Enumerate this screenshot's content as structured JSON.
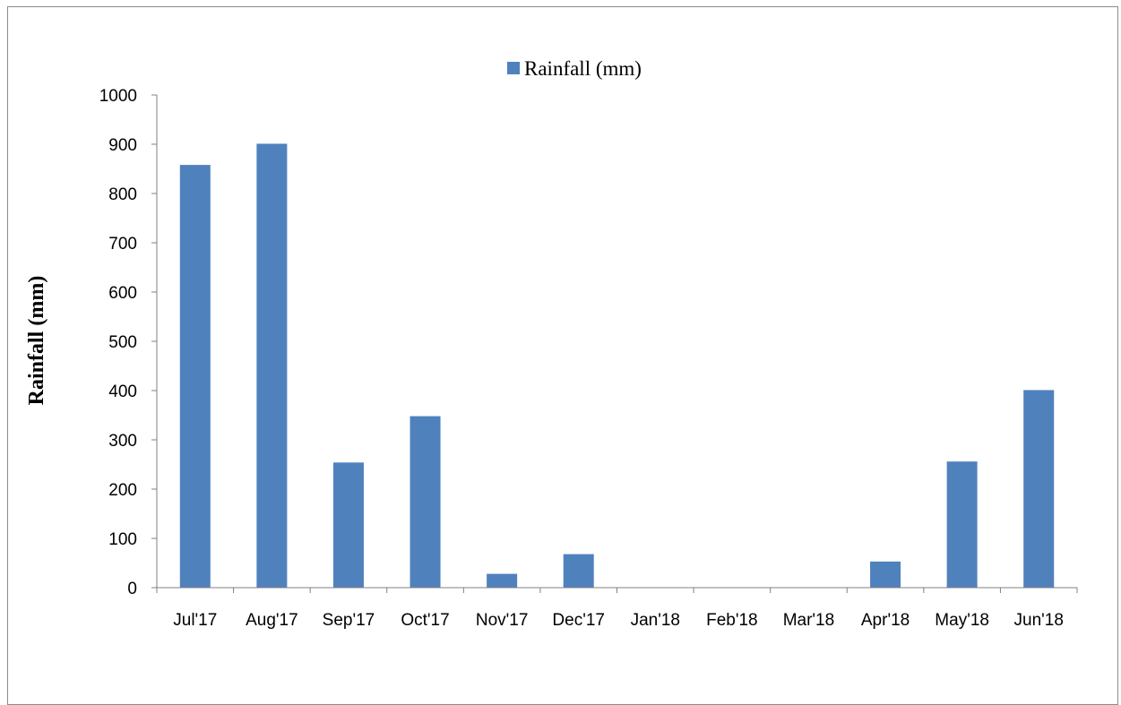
{
  "chart_data": {
    "type": "bar",
    "title": "",
    "xlabel": "",
    "ylabel": "Rainfall (mm)",
    "ylim": [
      0,
      1000
    ],
    "yticks": [
      0,
      100,
      200,
      300,
      400,
      500,
      600,
      700,
      800,
      900,
      1000
    ],
    "categories": [
      "Jul'17",
      "Aug'17",
      "Sep'17",
      "Oct'17",
      "Nov'17",
      "Dec'17",
      "Jan'18",
      "Feb'18",
      "Mar'18",
      "Apr'18",
      "May'18",
      "Jun'18"
    ],
    "series": [
      {
        "name": "Rainfall (mm)",
        "color": "#4f81bd",
        "values": [
          858,
          901,
          254,
          348,
          28,
          68,
          0,
          0,
          0,
          53,
          256,
          401
        ]
      }
    ],
    "grid": false,
    "legend_position": "top-center"
  }
}
